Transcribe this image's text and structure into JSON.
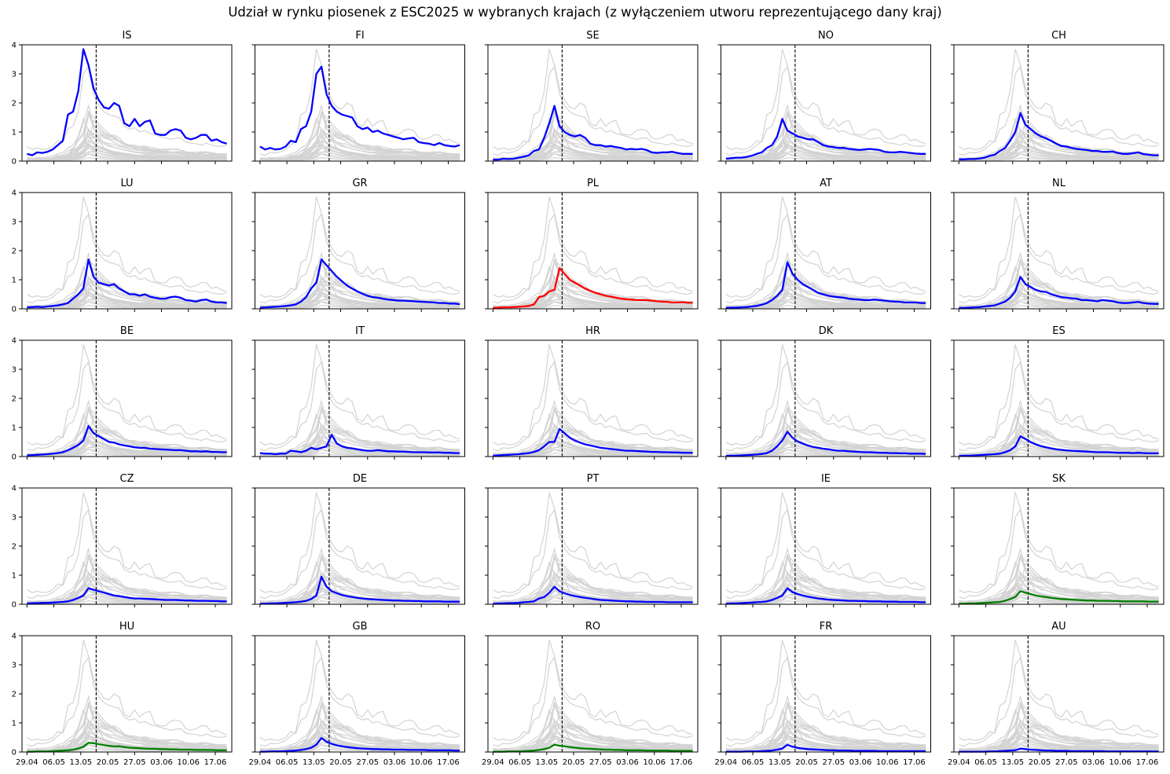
{
  "chart_data": {
    "type": "line",
    "title": "Udział w rynku piosenek z ESC2025 w wybranych krajach (z wyłączeniem utworu reprezentującego dany kraj)",
    "grid": false,
    "ylim": [
      0,
      4
    ],
    "yticks": [
      "0",
      "1",
      "2",
      "3",
      "4"
    ],
    "xticks": [
      "29.04",
      "06.05",
      "13.05",
      "20.05",
      "27.05",
      "03.06",
      "10.06",
      "17.06"
    ],
    "x_start": "29.04",
    "x_end": "20.06",
    "final_date": "17.05",
    "colors": {
      "highlight": "#0000ff",
      "poland": "#ff0000",
      "other": "#008000",
      "background": "#d3d3d3",
      "final_line": "#000000"
    },
    "panels": [
      {
        "country": "IS",
        "color": "blue",
        "values": [
          0.25,
          0.2,
          0.3,
          0.28,
          0.32,
          0.4,
          0.55,
          0.7,
          1.6,
          1.7,
          2.4,
          3.85,
          3.3,
          2.5,
          2.1,
          1.85,
          1.8,
          2.0,
          1.9,
          1.3,
          1.2,
          1.45,
          1.2,
          1.35,
          1.4,
          0.95,
          0.9,
          0.9,
          1.05,
          1.1,
          1.05,
          0.8,
          0.75,
          0.8,
          0.9,
          0.9,
          0.7,
          0.75,
          0.65,
          0.6
        ]
      },
      {
        "country": "FI",
        "color": "blue",
        "values": [
          0.5,
          0.4,
          0.45,
          0.4,
          0.42,
          0.5,
          0.7,
          0.65,
          1.1,
          1.2,
          1.7,
          3.0,
          3.25,
          2.3,
          1.9,
          1.7,
          1.6,
          1.55,
          1.5,
          1.2,
          1.1,
          1.15,
          1.0,
          1.05,
          0.95,
          0.9,
          0.85,
          0.8,
          0.75,
          0.78,
          0.8,
          0.65,
          0.62,
          0.6,
          0.55,
          0.62,
          0.55,
          0.52,
          0.5,
          0.55
        ]
      },
      {
        "country": "SE",
        "color": "blue",
        "values": [
          0.05,
          0.05,
          0.08,
          0.07,
          0.08,
          0.12,
          0.15,
          0.2,
          0.35,
          0.4,
          0.8,
          1.3,
          1.9,
          1.2,
          1.0,
          0.9,
          0.85,
          0.9,
          0.8,
          0.6,
          0.55,
          0.55,
          0.5,
          0.52,
          0.48,
          0.45,
          0.4,
          0.42,
          0.4,
          0.42,
          0.38,
          0.3,
          0.28,
          0.3,
          0.3,
          0.32,
          0.28,
          0.25,
          0.25,
          0.25
        ]
      },
      {
        "country": "NO",
        "color": "blue",
        "values": [
          0.08,
          0.1,
          0.12,
          0.12,
          0.14,
          0.18,
          0.25,
          0.3,
          0.45,
          0.55,
          0.85,
          1.45,
          1.05,
          0.95,
          0.85,
          0.8,
          0.75,
          0.75,
          0.65,
          0.55,
          0.5,
          0.48,
          0.45,
          0.45,
          0.42,
          0.4,
          0.38,
          0.4,
          0.42,
          0.4,
          0.38,
          0.32,
          0.3,
          0.3,
          0.32,
          0.3,
          0.28,
          0.26,
          0.25,
          0.25
        ]
      },
      {
        "country": "CH",
        "color": "blue",
        "values": [
          0.06,
          0.06,
          0.07,
          0.07,
          0.09,
          0.12,
          0.18,
          0.22,
          0.35,
          0.45,
          0.7,
          1.0,
          1.65,
          1.25,
          1.1,
          0.95,
          0.85,
          0.78,
          0.7,
          0.6,
          0.52,
          0.5,
          0.45,
          0.42,
          0.4,
          0.38,
          0.35,
          0.35,
          0.32,
          0.32,
          0.33,
          0.28,
          0.25,
          0.25,
          0.27,
          0.3,
          0.24,
          0.22,
          0.2,
          0.2
        ]
      },
      {
        "country": "LU",
        "color": "blue",
        "values": [
          0.05,
          0.06,
          0.07,
          0.06,
          0.08,
          0.1,
          0.12,
          0.15,
          0.2,
          0.35,
          0.5,
          0.7,
          1.7,
          1.1,
          0.9,
          0.85,
          0.8,
          0.85,
          0.7,
          0.6,
          0.5,
          0.5,
          0.45,
          0.5,
          0.42,
          0.38,
          0.35,
          0.35,
          0.4,
          0.42,
          0.38,
          0.3,
          0.28,
          0.25,
          0.3,
          0.32,
          0.25,
          0.22,
          0.22,
          0.2
        ]
      },
      {
        "country": "GR",
        "color": "blue",
        "values": [
          0.04,
          0.05,
          0.06,
          0.07,
          0.08,
          0.1,
          0.12,
          0.15,
          0.25,
          0.4,
          0.7,
          0.9,
          1.7,
          1.5,
          1.3,
          1.1,
          0.95,
          0.8,
          0.7,
          0.6,
          0.52,
          0.45,
          0.4,
          0.38,
          0.35,
          0.32,
          0.3,
          0.28,
          0.28,
          0.27,
          0.26,
          0.25,
          0.24,
          0.23,
          0.22,
          0.2,
          0.2,
          0.18,
          0.18,
          0.16
        ]
      },
      {
        "country": "PL",
        "color": "red",
        "values": [
          0.03,
          0.04,
          0.05,
          0.05,
          0.06,
          0.07,
          0.08,
          0.1,
          0.15,
          0.4,
          0.45,
          0.6,
          0.65,
          1.4,
          1.2,
          1.0,
          0.9,
          0.8,
          0.7,
          0.62,
          0.55,
          0.5,
          0.45,
          0.42,
          0.38,
          0.35,
          0.33,
          0.32,
          0.3,
          0.3,
          0.3,
          0.28,
          0.26,
          0.25,
          0.24,
          0.22,
          0.22,
          0.23,
          0.21,
          0.21
        ]
      },
      {
        "country": "AT",
        "color": "blue",
        "values": [
          0.03,
          0.04,
          0.04,
          0.05,
          0.06,
          0.08,
          0.1,
          0.14,
          0.2,
          0.3,
          0.45,
          0.65,
          1.6,
          1.2,
          1.0,
          0.85,
          0.75,
          0.65,
          0.55,
          0.5,
          0.45,
          0.42,
          0.4,
          0.38,
          0.35,
          0.33,
          0.32,
          0.3,
          0.3,
          0.32,
          0.3,
          0.28,
          0.26,
          0.25,
          0.24,
          0.22,
          0.22,
          0.22,
          0.2,
          0.2
        ]
      },
      {
        "country": "NL",
        "color": "blue",
        "values": [
          0.03,
          0.03,
          0.04,
          0.05,
          0.06,
          0.08,
          0.1,
          0.12,
          0.18,
          0.25,
          0.38,
          0.6,
          1.1,
          0.85,
          0.75,
          0.65,
          0.6,
          0.58,
          0.5,
          0.45,
          0.4,
          0.38,
          0.36,
          0.35,
          0.3,
          0.3,
          0.28,
          0.26,
          0.3,
          0.28,
          0.26,
          0.22,
          0.2,
          0.2,
          0.22,
          0.24,
          0.2,
          0.18,
          0.17,
          0.17
        ]
      },
      {
        "country": "BE",
        "color": "blue",
        "values": [
          0.04,
          0.05,
          0.06,
          0.07,
          0.08,
          0.1,
          0.12,
          0.15,
          0.22,
          0.3,
          0.4,
          0.55,
          1.05,
          0.8,
          0.7,
          0.6,
          0.5,
          0.48,
          0.42,
          0.38,
          0.35,
          0.32,
          0.3,
          0.3,
          0.27,
          0.26,
          0.25,
          0.24,
          0.23,
          0.22,
          0.22,
          0.2,
          0.18,
          0.18,
          0.17,
          0.18,
          0.16,
          0.16,
          0.15,
          0.15
        ]
      },
      {
        "country": "IT",
        "color": "blue",
        "values": [
          0.12,
          0.1,
          0.1,
          0.08,
          0.1,
          0.1,
          0.2,
          0.18,
          0.15,
          0.2,
          0.3,
          0.25,
          0.3,
          0.35,
          0.75,
          0.45,
          0.35,
          0.3,
          0.28,
          0.25,
          0.22,
          0.2,
          0.2,
          0.22,
          0.2,
          0.18,
          0.18,
          0.17,
          0.17,
          0.16,
          0.15,
          0.15,
          0.15,
          0.14,
          0.14,
          0.14,
          0.13,
          0.13,
          0.12,
          0.12
        ]
      },
      {
        "country": "HR",
        "color": "blue",
        "values": [
          0.03,
          0.04,
          0.05,
          0.06,
          0.07,
          0.08,
          0.1,
          0.12,
          0.16,
          0.22,
          0.35,
          0.5,
          0.5,
          0.95,
          0.8,
          0.65,
          0.55,
          0.48,
          0.42,
          0.38,
          0.34,
          0.3,
          0.28,
          0.26,
          0.24,
          0.22,
          0.2,
          0.2,
          0.19,
          0.18,
          0.17,
          0.16,
          0.16,
          0.15,
          0.15,
          0.14,
          0.14,
          0.13,
          0.13,
          0.13
        ]
      },
      {
        "country": "DK",
        "color": "blue",
        "values": [
          0.02,
          0.03,
          0.03,
          0.04,
          0.05,
          0.06,
          0.07,
          0.09,
          0.12,
          0.2,
          0.35,
          0.55,
          0.85,
          0.65,
          0.52,
          0.45,
          0.38,
          0.33,
          0.3,
          0.27,
          0.25,
          0.22,
          0.2,
          0.2,
          0.18,
          0.17,
          0.16,
          0.15,
          0.15,
          0.14,
          0.13,
          0.13,
          0.12,
          0.12,
          0.11,
          0.11,
          0.1,
          0.1,
          0.1,
          0.09
        ]
      },
      {
        "country": "ES",
        "color": "blue",
        "values": [
          0.02,
          0.03,
          0.03,
          0.04,
          0.05,
          0.06,
          0.07,
          0.08,
          0.1,
          0.15,
          0.22,
          0.35,
          0.7,
          0.6,
          0.5,
          0.42,
          0.36,
          0.32,
          0.28,
          0.25,
          0.23,
          0.21,
          0.2,
          0.19,
          0.18,
          0.17,
          0.16,
          0.15,
          0.15,
          0.15,
          0.14,
          0.13,
          0.13,
          0.13,
          0.12,
          0.13,
          0.12,
          0.11,
          0.11,
          0.11
        ]
      },
      {
        "country": "CZ",
        "color": "blue",
        "values": [
          0.03,
          0.04,
          0.04,
          0.05,
          0.05,
          0.06,
          0.07,
          0.08,
          0.1,
          0.15,
          0.22,
          0.3,
          0.55,
          0.5,
          0.45,
          0.4,
          0.35,
          0.3,
          0.28,
          0.25,
          0.22,
          0.2,
          0.2,
          0.19,
          0.18,
          0.17,
          0.16,
          0.15,
          0.15,
          0.15,
          0.14,
          0.13,
          0.13,
          0.12,
          0.12,
          0.12,
          0.11,
          0.11,
          0.1,
          0.1
        ]
      },
      {
        "country": "DE",
        "color": "blue",
        "values": [
          0.02,
          0.02,
          0.03,
          0.03,
          0.04,
          0.05,
          0.06,
          0.07,
          0.09,
          0.12,
          0.18,
          0.3,
          0.95,
          0.6,
          0.45,
          0.38,
          0.32,
          0.28,
          0.25,
          0.22,
          0.2,
          0.18,
          0.17,
          0.16,
          0.15,
          0.14,
          0.13,
          0.13,
          0.12,
          0.12,
          0.11,
          0.11,
          0.1,
          0.1,
          0.1,
          0.1,
          0.09,
          0.09,
          0.09,
          0.09
        ]
      },
      {
        "country": "PT",
        "color": "blue",
        "values": [
          0.02,
          0.03,
          0.03,
          0.04,
          0.04,
          0.05,
          0.07,
          0.08,
          0.1,
          0.2,
          0.25,
          0.4,
          0.6,
          0.45,
          0.38,
          0.32,
          0.28,
          0.25,
          0.22,
          0.2,
          0.17,
          0.15,
          0.14,
          0.13,
          0.12,
          0.11,
          0.1,
          0.1,
          0.09,
          0.09,
          0.08,
          0.08,
          0.08,
          0.08,
          0.07,
          0.07,
          0.07,
          0.07,
          0.07,
          0.07
        ]
      },
      {
        "country": "IE",
        "color": "blue",
        "values": [
          0.02,
          0.03,
          0.03,
          0.04,
          0.05,
          0.06,
          0.07,
          0.08,
          0.1,
          0.15,
          0.22,
          0.3,
          0.55,
          0.42,
          0.35,
          0.3,
          0.26,
          0.23,
          0.2,
          0.18,
          0.16,
          0.15,
          0.14,
          0.13,
          0.12,
          0.12,
          0.11,
          0.11,
          0.1,
          0.1,
          0.1,
          0.09,
          0.09,
          0.09,
          0.08,
          0.08,
          0.08,
          0.08,
          0.07,
          0.07
        ]
      },
      {
        "country": "SK",
        "color": "green",
        "values": [
          0.02,
          0.02,
          0.03,
          0.03,
          0.04,
          0.05,
          0.06,
          0.07,
          0.08,
          0.12,
          0.18,
          0.25,
          0.45,
          0.4,
          0.35,
          0.3,
          0.27,
          0.25,
          0.22,
          0.2,
          0.18,
          0.17,
          0.16,
          0.15,
          0.14,
          0.13,
          0.13,
          0.12,
          0.12,
          0.12,
          0.11,
          0.11,
          0.1,
          0.1,
          0.1,
          0.1,
          0.1,
          0.09,
          0.09,
          0.09
        ]
      },
      {
        "country": "HU",
        "color": "green",
        "values": [
          0.01,
          0.01,
          0.02,
          0.02,
          0.02,
          0.03,
          0.04,
          0.05,
          0.06,
          0.08,
          0.12,
          0.18,
          0.32,
          0.3,
          0.27,
          0.24,
          0.21,
          0.19,
          0.2,
          0.17,
          0.15,
          0.14,
          0.13,
          0.12,
          0.11,
          0.11,
          0.1,
          0.1,
          0.09,
          0.09,
          0.08,
          0.08,
          0.08,
          0.07,
          0.07,
          0.07,
          0.07,
          0.06,
          0.06,
          0.06
        ]
      },
      {
        "country": "GB",
        "color": "blue",
        "values": [
          0.01,
          0.01,
          0.02,
          0.02,
          0.02,
          0.03,
          0.04,
          0.05,
          0.07,
          0.1,
          0.15,
          0.25,
          0.48,
          0.35,
          0.28,
          0.23,
          0.2,
          0.17,
          0.15,
          0.13,
          0.12,
          0.11,
          0.1,
          0.1,
          0.09,
          0.09,
          0.08,
          0.08,
          0.08,
          0.07,
          0.07,
          0.07,
          0.07,
          0.06,
          0.06,
          0.06,
          0.06,
          0.06,
          0.05,
          0.05
        ]
      },
      {
        "country": "RO",
        "color": "green",
        "values": [
          0.01,
          0.01,
          0.01,
          0.02,
          0.02,
          0.02,
          0.03,
          0.04,
          0.05,
          0.07,
          0.1,
          0.15,
          0.25,
          0.22,
          0.2,
          0.17,
          0.15,
          0.13,
          0.12,
          0.11,
          0.1,
          0.09,
          0.08,
          0.08,
          0.07,
          0.07,
          0.06,
          0.06,
          0.06,
          0.06,
          0.05,
          0.05,
          0.05,
          0.05,
          0.05,
          0.04,
          0.04,
          0.04,
          0.04,
          0.04
        ]
      },
      {
        "country": "FR",
        "color": "blue",
        "values": [
          0.01,
          0.01,
          0.01,
          0.01,
          0.02,
          0.02,
          0.02,
          0.03,
          0.04,
          0.05,
          0.08,
          0.12,
          0.25,
          0.18,
          0.14,
          0.12,
          0.1,
          0.09,
          0.08,
          0.07,
          0.06,
          0.06,
          0.05,
          0.05,
          0.05,
          0.04,
          0.04,
          0.04,
          0.04,
          0.04,
          0.03,
          0.03,
          0.03,
          0.03,
          0.03,
          0.03,
          0.03,
          0.03,
          0.03,
          0.03
        ]
      },
      {
        "country": "AU",
        "color": "blue",
        "values": [
          0.01,
          0.01,
          0.01,
          0.01,
          0.01,
          0.01,
          0.02,
          0.02,
          0.03,
          0.04,
          0.05,
          0.06,
          0.12,
          0.1,
          0.08,
          0.07,
          0.06,
          0.05,
          0.05,
          0.04,
          0.04,
          0.04,
          0.03,
          0.03,
          0.03,
          0.03,
          0.03,
          0.03,
          0.03,
          0.02,
          0.02,
          0.02,
          0.02,
          0.02,
          0.02,
          0.02,
          0.02,
          0.02,
          0.02,
          0.02
        ]
      }
    ]
  }
}
